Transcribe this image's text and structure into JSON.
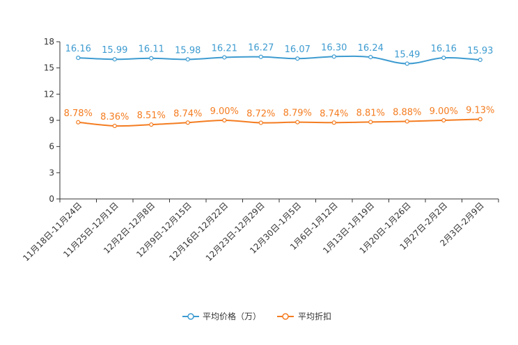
{
  "chart_data": {
    "type": "line",
    "title": "",
    "xlabel": "",
    "ylabel": "",
    "ylim": [
      0,
      18
    ],
    "yticks": [
      0,
      3,
      6,
      9,
      12,
      15,
      18
    ],
    "grid": false,
    "legend_position": "bottom-center",
    "categories": [
      "11月18日-11月24日",
      "11月25日-12月1日",
      "12月2日-12月8日",
      "12月9日-12月15日",
      "12月16日-12月22日",
      "12月23日-12月29日",
      "12月30日-1月5日",
      "1月6日-1月12日",
      "1月13日-1月19日",
      "1月20日-1月26日",
      "1月27日-2月2日",
      "2月3日-2月9日"
    ],
    "series": [
      {
        "name": "平均价格（万）",
        "color": "#3d9bd0",
        "values": [
          16.16,
          15.99,
          16.11,
          15.98,
          16.21,
          16.27,
          16.07,
          16.3,
          16.24,
          15.49,
          16.16,
          15.93
        ],
        "labels": [
          "16.16",
          "15.99",
          "16.11",
          "15.98",
          "16.21",
          "16.27",
          "16.07",
          "16.30",
          "16.24",
          "15.49",
          "16.16",
          "15.93"
        ]
      },
      {
        "name": "平均折扣",
        "color": "#f47c20",
        "values": [
          8.78,
          8.36,
          8.51,
          8.74,
          9.0,
          8.72,
          8.79,
          8.74,
          8.81,
          8.88,
          9.0,
          9.13
        ],
        "labels": [
          "8.78%",
          "8.36%",
          "8.51%",
          "8.74%",
          "9.00%",
          "8.72%",
          "8.79%",
          "8.74%",
          "8.81%",
          "8.88%",
          "9.00%",
          "9.13%"
        ]
      }
    ]
  }
}
